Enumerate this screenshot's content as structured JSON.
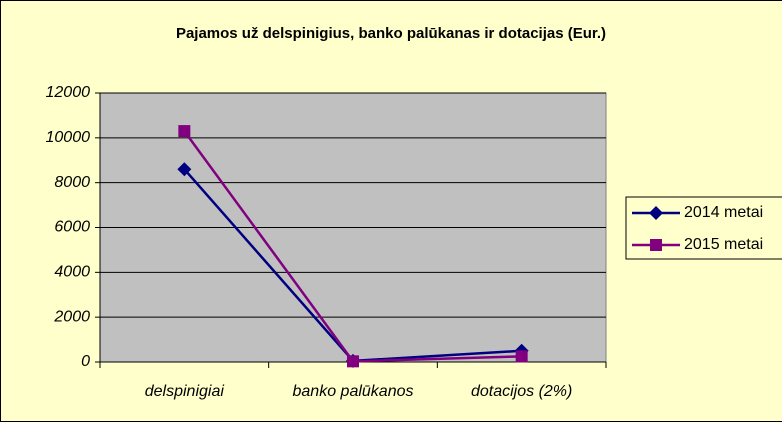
{
  "chart_data": {
    "type": "line",
    "title": "Pajamos už delspinigius, banko palūkanas ir dotacijas (Eur.)",
    "categories": [
      "delspinigiai",
      "banko palūkanos",
      "dotacijos (2%)"
    ],
    "series": [
      {
        "name": "2014 metai",
        "color": "#000080",
        "marker": "diamond",
        "values": [
          8600,
          50,
          500
        ]
      },
      {
        "name": "2015 metai",
        "color": "#800080",
        "marker": "square",
        "values": [
          10300,
          30,
          250
        ]
      }
    ],
    "ylim": [
      0,
      12000
    ],
    "yticks": [
      0,
      2000,
      4000,
      6000,
      8000,
      10000,
      12000
    ],
    "grid": true,
    "legend": "right"
  }
}
